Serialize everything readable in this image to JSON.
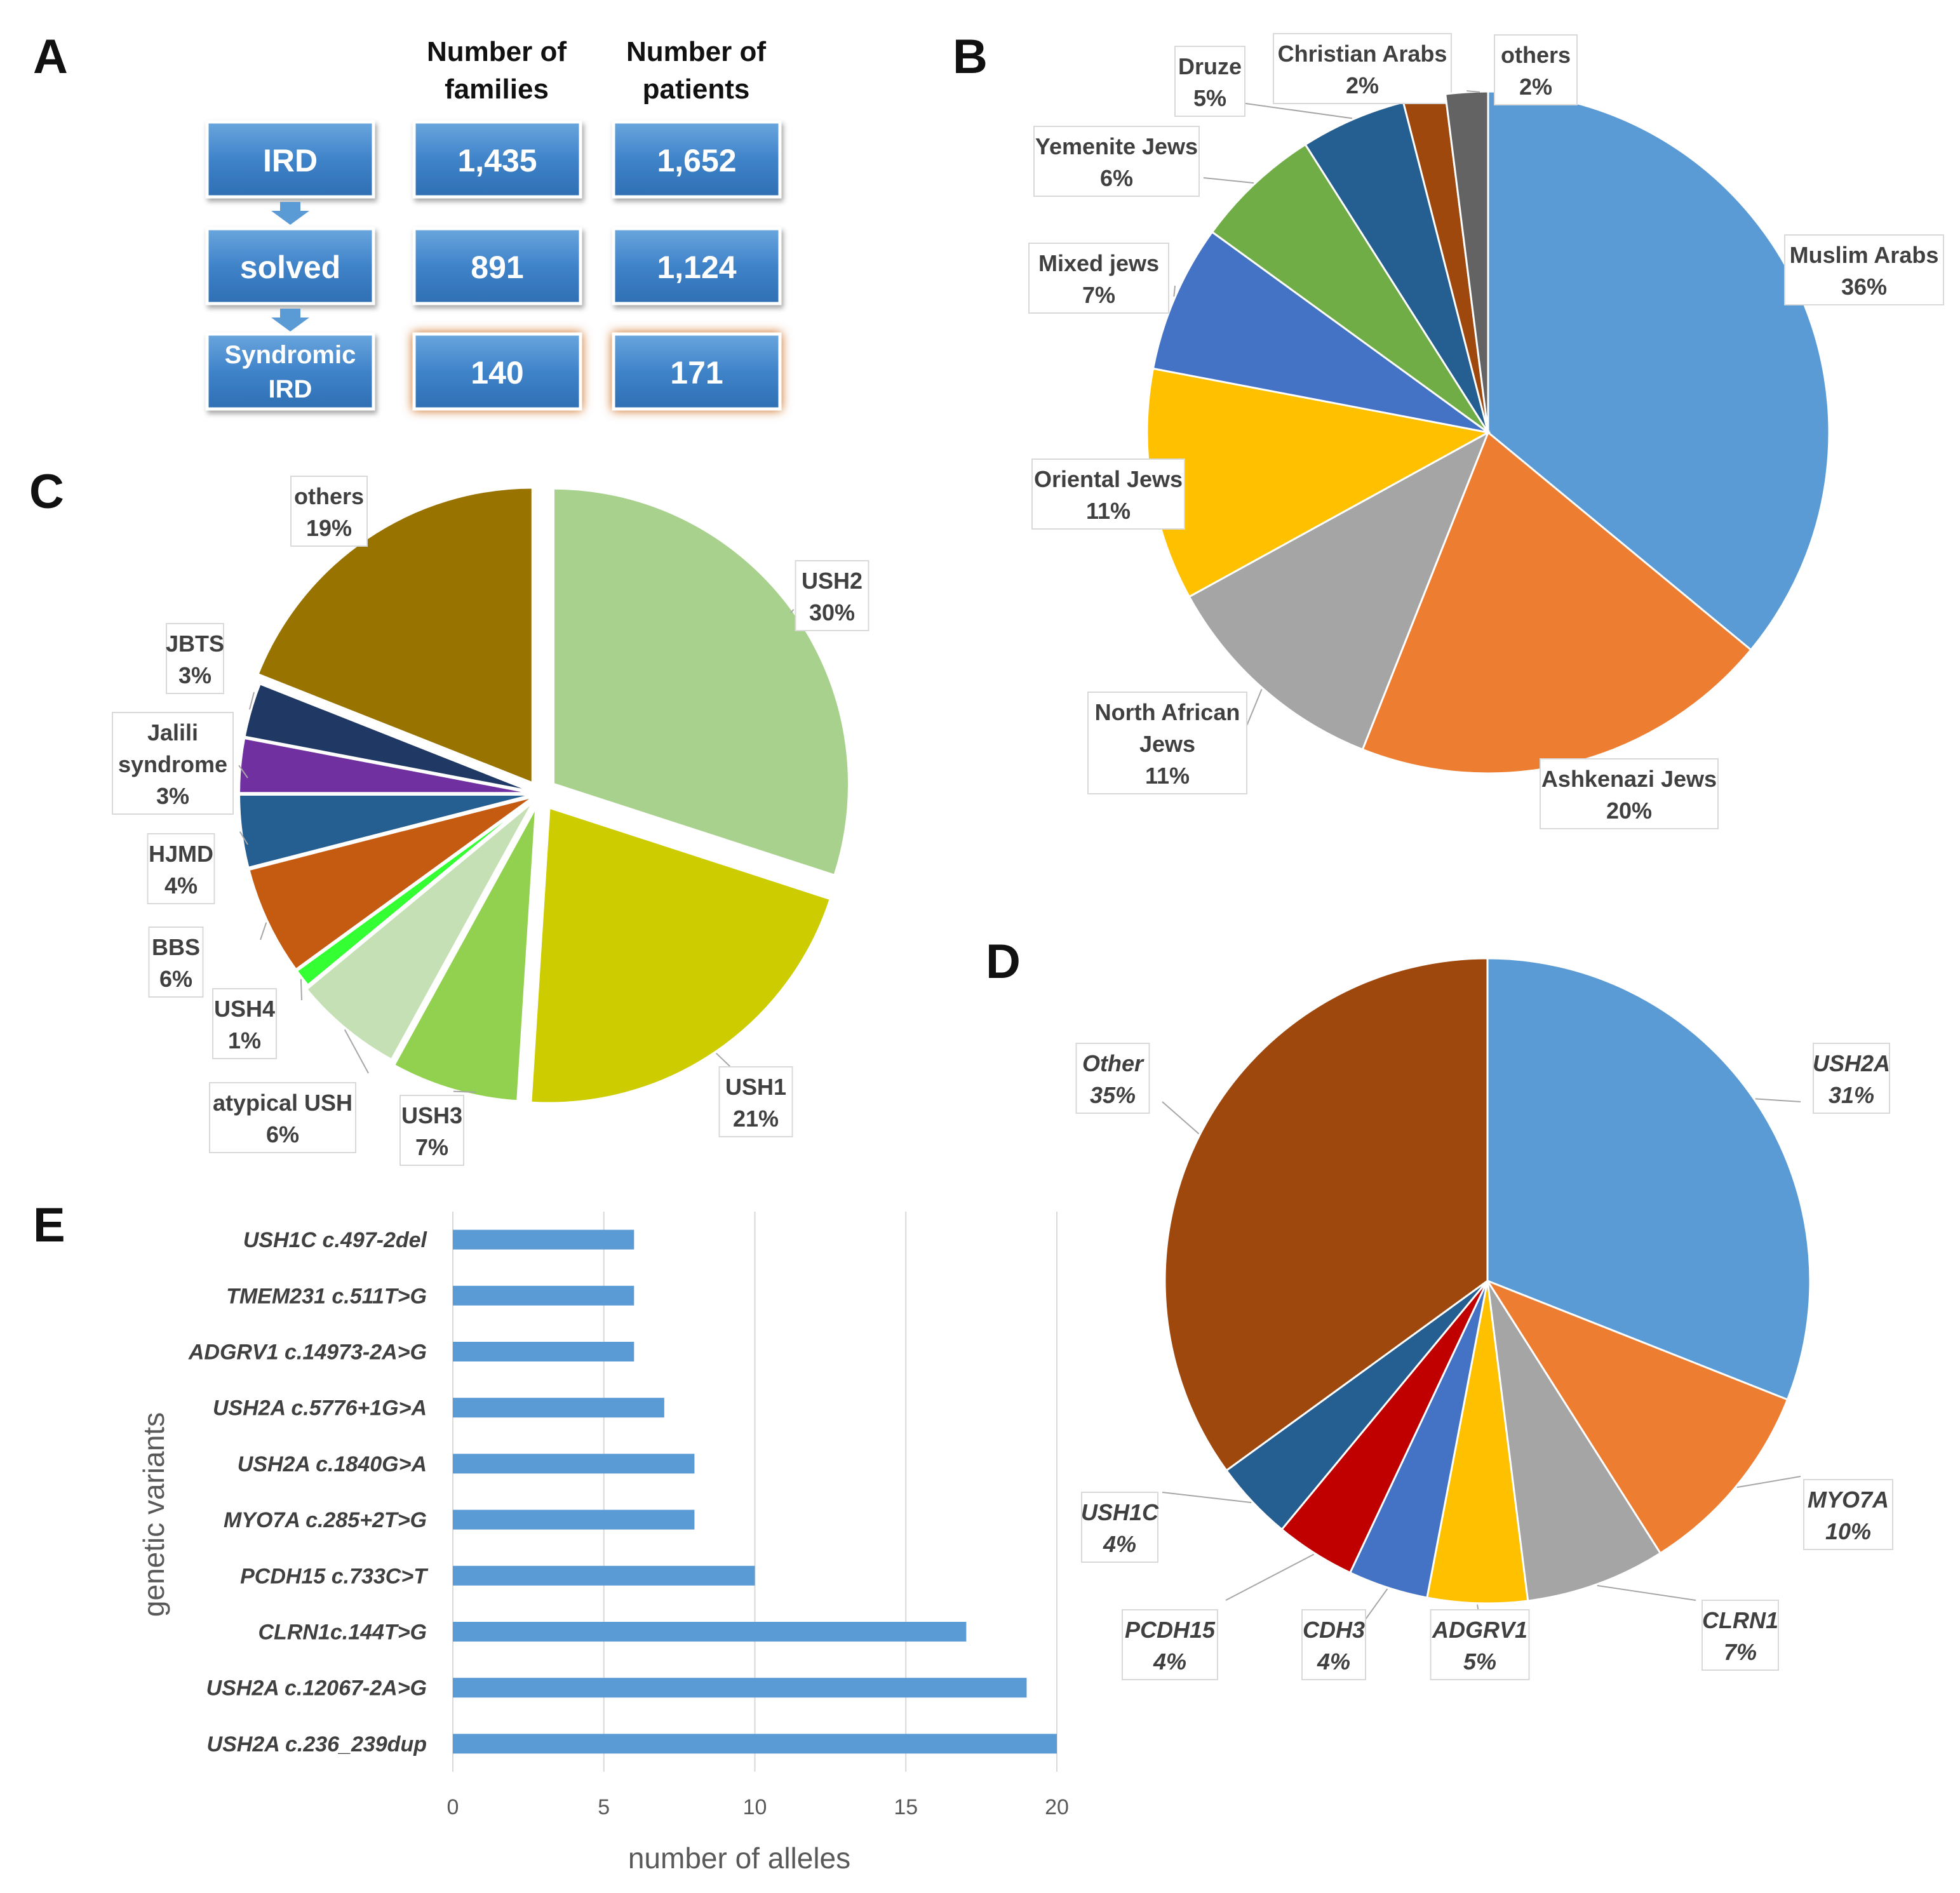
{
  "panels": {
    "a": "A",
    "b": "B",
    "c": "C",
    "d": "D",
    "e": "E"
  },
  "table": {
    "headers": [
      {
        "line1": "Number of",
        "line2": "families"
      },
      {
        "line1": "Number of",
        "line2": "patients"
      }
    ],
    "rows": [
      {
        "label_lines": [
          "IRD"
        ],
        "families": "1,435",
        "patients": "1,652",
        "highlight": false
      },
      {
        "label_lines": [
          "solved"
        ],
        "families": "891",
        "patients": "1,124",
        "highlight": false
      },
      {
        "label_lines": [
          "Syndromic",
          "IRD"
        ],
        "families": "140",
        "patients": "171",
        "highlight": true
      }
    ]
  },
  "chart_data": [
    {
      "id": "B",
      "type": "pie",
      "title": "",
      "italic_labels": false,
      "slices": [
        {
          "name": "Muslim Arabs",
          "name2": "",
          "value": 36,
          "label": "36%",
          "color": "#5b9bd5"
        },
        {
          "name": "Ashkenazi Jews",
          "name2": "",
          "value": 20,
          "label": "20%",
          "color": "#ed7d31"
        },
        {
          "name": "North African",
          "name2": "Jews",
          "value": 11,
          "label": "11%",
          "color": "#a5a5a5"
        },
        {
          "name": "Oriental Jews",
          "name2": "",
          "value": 11,
          "label": "11%",
          "color": "#ffc000"
        },
        {
          "name": "Mixed jews",
          "name2": "",
          "value": 7,
          "label": "7%",
          "color": "#4472c4"
        },
        {
          "name": "Yemenite Jews",
          "name2": "",
          "value": 6,
          "label": "6%",
          "color": "#70ad47"
        },
        {
          "name": "Druze",
          "name2": "",
          "value": 5,
          "label": "5%",
          "color": "#255e91"
        },
        {
          "name": "Christian Arabs",
          "name2": "",
          "value": 2,
          "label": "2%",
          "color": "#9e480e"
        },
        {
          "name": "others",
          "name2": "",
          "value": 2,
          "label": "2%",
          "color": "#636363"
        }
      ]
    },
    {
      "id": "C",
      "type": "pie",
      "title": "",
      "italic_labels": false,
      "exploded": true,
      "slices": [
        {
          "name": "USH2",
          "name2": "",
          "value": 30,
          "label": "30%",
          "color": "#a9d18e"
        },
        {
          "name": "USH1",
          "name2": "",
          "value": 21,
          "label": "21%",
          "color": "#cccc00"
        },
        {
          "name": "USH3",
          "name2": "",
          "value": 7,
          "label": "7%",
          "color": "#92d050"
        },
        {
          "name": "atypical USH",
          "name2": "",
          "value": 6,
          "label": "6%",
          "color": "#c5e0b4"
        },
        {
          "name": "USH4",
          "name2": "",
          "value": 1,
          "label": "1%",
          "color": "#33ff33"
        },
        {
          "name": "BBS",
          "name2": "",
          "value": 6,
          "label": "6%",
          "color": "#c55a11"
        },
        {
          "name": "HJMD",
          "name2": "",
          "value": 4,
          "label": "4%",
          "color": "#255e91"
        },
        {
          "name": "Jalili",
          "name2": "syndrome",
          "value": 3,
          "label": "3%",
          "color": "#7030a0"
        },
        {
          "name": "JBTS",
          "name2": "",
          "value": 3,
          "label": "3%",
          "color": "#203864"
        },
        {
          "name": "others",
          "name2": "",
          "value": 19,
          "label": "19%",
          "color": "#997300"
        }
      ]
    },
    {
      "id": "D",
      "type": "pie",
      "title": "",
      "italic_labels": true,
      "slices": [
        {
          "name": "USH2A",
          "name2": "",
          "value": 31,
          "label": "31%",
          "color": "#5b9bd5"
        },
        {
          "name": "MYO7A",
          "name2": "",
          "value": 10,
          "label": "10%",
          "color": "#ed7d31"
        },
        {
          "name": "CLRN1",
          "name2": "",
          "value": 7,
          "label": "7%",
          "color": "#a5a5a5"
        },
        {
          "name": "ADGRV1",
          "name2": "",
          "value": 5,
          "label": "5%",
          "color": "#ffc000"
        },
        {
          "name": "CDH3",
          "name2": "",
          "value": 4,
          "label": "4%",
          "color": "#4472c4"
        },
        {
          "name": "PCDH15",
          "name2": "",
          "value": 4,
          "label": "4%",
          "color": "#c00000"
        },
        {
          "name": "USH1C",
          "name2": "",
          "value": 4,
          "label": "4%",
          "color": "#255e91"
        },
        {
          "name": "Other",
          "name2": "",
          "value": 35,
          "label": "35%",
          "color": "#9e480e"
        }
      ]
    },
    {
      "id": "E",
      "type": "bar",
      "orientation": "horizontal",
      "title": "",
      "xlabel": "number of alleles",
      "ylabel": "genetic variants",
      "xlim": [
        0,
        20
      ],
      "xticks": [
        0,
        5,
        10,
        15,
        20
      ],
      "grid": true,
      "bar_color": "#5b9bd5",
      "categories": [
        "USH1C c.497-2del",
        "TMEM231 c.511T>G",
        "ADGRV1 c.14973-2A>G",
        "USH2A c.5776+1G>A",
        "USH2A c.1840G>A",
        "MYO7A c.285+2T>G",
        "PCDH15 c.733C>T",
        "CLRN1c.144T>G",
        "USH2A c.12067-2A>G",
        "USH2A c.236_239dup"
      ],
      "values": [
        6,
        6,
        6,
        7,
        8,
        8,
        10,
        17,
        19,
        20
      ]
    }
  ]
}
